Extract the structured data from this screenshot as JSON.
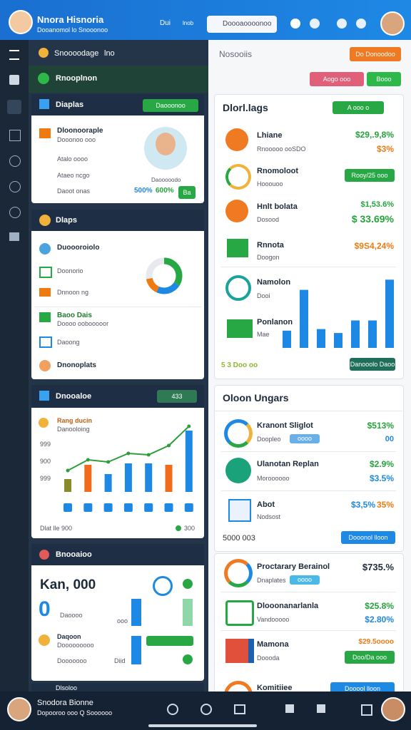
{
  "top_bar": {
    "app_title": "Nnora Hisnoria",
    "app_subtitle": "Dooanomol lo Snooonoo",
    "nav_label": "Dui",
    "menu_label": "lnob",
    "search": "Doooaoooonoo"
  },
  "toolbar": {
    "title": "Snoooodage",
    "tab": "lno"
  },
  "sidebar_header": "Rnooplnon",
  "profile_card": {
    "title": "Diaplas",
    "button": "Daooonoo",
    "heading": "Dloonooraple",
    "subheading": "Dooonoo ooo",
    "items": [
      "Atalo oooo",
      "Ataeo ncgo",
      "Daoot onas"
    ],
    "name": "Daooooodo",
    "stat1": "500%",
    "stat2": "600%",
    "badge": "Ba"
  },
  "stats_card": {
    "title": "Dlaps",
    "items": [
      "Duoooroiolo",
      "Doonorio",
      "Dnnoon ng"
    ],
    "section": "Baoo Dais",
    "section_sub": "Doooo oobooooor",
    "items2": [
      "Daoong",
      "Dnonoplats"
    ]
  },
  "activity_card": {
    "title": "Dnooaloe",
    "button": "433",
    "legend_title": "Rang ducin",
    "legend_sub": "Danooloing",
    "axis_labels": [
      "999",
      "900",
      "999"
    ],
    "ylim": [
      0,
      100
    ],
    "bars": {
      "values": [
        18,
        38,
        25,
        40,
        40,
        38,
        86
      ],
      "colors": [
        "#8a8a2a",
        "#f26a1b",
        "#1e88e5",
        "#1e88e5",
        "#1e88e5",
        "#f26a1b",
        "#1e88e5"
      ]
    },
    "line": {
      "values": [
        30,
        45,
        42,
        54,
        52,
        65,
        92
      ],
      "color": "#2e9e3a"
    },
    "footer": "Dlat lle 900",
    "footer_value": "300"
  },
  "summary_card": {
    "title": "Bnooaioo",
    "big": "Kan, 000",
    "zero": "0",
    "sub": "Daoooo",
    "small1": "ooo",
    "row_title": "Daqoon",
    "row_sub": "Dooooooooo",
    "row_sub2": "Dooooooo",
    "small2": "Diid"
  },
  "partial_card": {
    "title": "Dlsoloo"
  },
  "right_header": {
    "title": "Nosooiis",
    "orange_button": "Do Donoodoo",
    "red_button": "Aogo ooo",
    "green_button": "Booo"
  },
  "panel1": {
    "title": "Dlorl.lags",
    "button": "A ooo o",
    "rows": [
      {
        "title": "Lhiane",
        "sub": "Rnooooo ooSDO",
        "v1": "$29,.9,8%",
        "v2": "$3%"
      },
      {
        "title": "Rnomoloot",
        "sub": "Hooouoo",
        "button": "Rooy/25 ooo"
      },
      {
        "title": "Hnlt bolata",
        "sub": "Dosood",
        "v1": "$1,53.6%",
        "v2": "$ 33.69%"
      },
      {
        "title": "Rnnota",
        "sub": "Doogon",
        "v1": "$9S4,24%"
      },
      {
        "title": "Namolon",
        "sub": "Dooi"
      },
      {
        "title": "Ponlanon",
        "sub": "Mae"
      }
    ],
    "footer": "5 3 Doo oo",
    "footer_button": "Danooolo Daoo",
    "ylim": [
      0,
      100
    ],
    "bars": [
      22,
      74,
      24,
      19,
      35,
      35,
      87
    ]
  },
  "panel2": {
    "title": "Oloon Ungars",
    "rows": [
      {
        "title": "Kranont Sliglot",
        "sub": "Doopleo",
        "badge": "oooo",
        "v1": "$513%",
        "v2": "00"
      },
      {
        "title": "Ulanotan Replan",
        "sub": "Moroooooo",
        "v1": "$2.9%",
        "v2": "$3.5%"
      },
      {
        "title": "Abot",
        "sub": "Nodsost",
        "v1": "$3,5%",
        "v2": "35%"
      }
    ],
    "footer": "5000 003",
    "footer_button": "Dooonol lloon"
  },
  "panel3": {
    "rows": [
      {
        "title": "Proctarary Berainol",
        "sub": "Dnaplates",
        "badge": "oooo",
        "v1": "$735.%"
      },
      {
        "title": "Dlooonanarlanla",
        "sub": "Vandooooo",
        "v1": "$25.8%",
        "v2": "$2.80%"
      },
      {
        "title": "Mamona",
        "sub": "Doooda",
        "v1": "$29.5oooo",
        "button": "Doo/Da ooo"
      },
      {
        "title": "Komitiiee",
        "button": "Dooool lloon"
      }
    ]
  },
  "bottom_bar": {
    "name": "Snodora Bionne",
    "sub": "Dopooroo ooo Q Soooooo"
  }
}
